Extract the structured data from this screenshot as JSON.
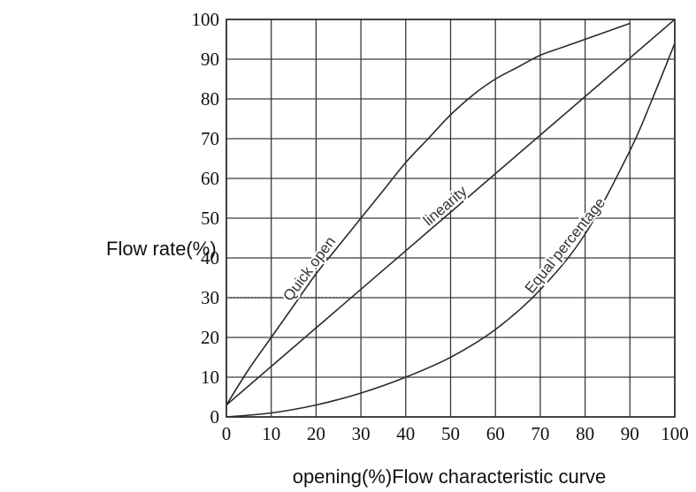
{
  "chart_data": {
    "type": "line",
    "title": "",
    "xlabel": "opening(%)Flow characteristic curve",
    "ylabel": "Flow rate(%)",
    "xlim": [
      0,
      100
    ],
    "ylim": [
      0,
      100
    ],
    "grid": true,
    "x_ticks": [
      "0",
      "10",
      "20",
      "30",
      "40",
      "50",
      "60",
      "70",
      "80",
      "90",
      "100"
    ],
    "y_ticks": [
      "0",
      "10",
      "20",
      "30",
      "40",
      "50",
      "60",
      "70",
      "80",
      "90",
      "100"
    ],
    "series": [
      {
        "name": "Quick open",
        "x": [
          0,
          5,
          10,
          15,
          20,
          25,
          30,
          35,
          40,
          45,
          50,
          55,
          60,
          65,
          70,
          75,
          80,
          85,
          90
        ],
        "y": [
          3,
          12,
          20,
          28,
          36,
          43,
          50,
          57,
          64,
          70,
          76,
          81,
          85,
          88,
          91,
          93,
          95,
          97,
          99
        ],
        "label_at_x": 20
      },
      {
        "name": "linearity",
        "x": [
          0,
          100
        ],
        "y": [
          3,
          100
        ],
        "label_at_x": 50
      },
      {
        "name": "Equal percentage",
        "x": [
          0,
          10,
          20,
          30,
          40,
          50,
          60,
          70,
          80,
          90,
          95,
          100
        ],
        "y": [
          0,
          1,
          3,
          6,
          10,
          15,
          22,
          32,
          46,
          67,
          80,
          94
        ],
        "label_at_x": 77
      }
    ],
    "annotations": [
      {
        "type": "dotted-guide",
        "x": [
          0,
          30,
          30
        ],
        "y": [
          30,
          30,
          30
        ]
      },
      {
        "type": "dotted-guide",
        "x": [
          0,
          0,
          10
        ],
        "y": [
          12,
          0,
          0
        ]
      }
    ]
  }
}
